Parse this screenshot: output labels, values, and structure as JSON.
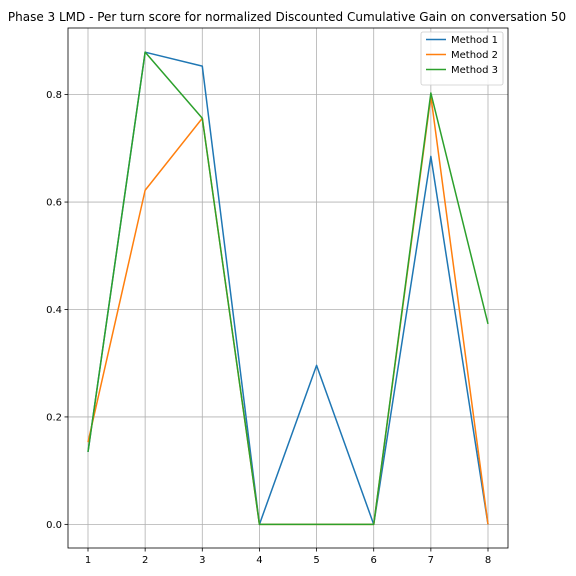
{
  "chart_data": {
    "type": "line",
    "title": "Phase 3 LMD - Per turn score for normalized Discounted Cumulative Gain on conversation 50",
    "xlabel": "",
    "ylabel": "",
    "x": [
      1,
      2,
      3,
      4,
      5,
      6,
      7,
      8
    ],
    "xticks": [
      "1",
      "2",
      "3",
      "4",
      "5",
      "6",
      "7",
      "8"
    ],
    "yticks": [
      "0.0",
      "0.2",
      "0.4",
      "0.6",
      "0.8"
    ],
    "xlim": [
      0.65,
      8.35
    ],
    "ylim": [
      -0.044,
      0.924
    ],
    "grid": true,
    "legend": "top-right",
    "series": [
      {
        "name": "Method 1",
        "color": "#1f77b4",
        "values": [
          0.135,
          0.879,
          0.853,
          0.0,
          0.296,
          0.0,
          0.685,
          0.0
        ]
      },
      {
        "name": "Method 2",
        "color": "#ff7f0e",
        "values": [
          0.153,
          0.622,
          0.756,
          0.0,
          0.0,
          0.0,
          0.797,
          0.0
        ]
      },
      {
        "name": "Method 3",
        "color": "#2ca02c",
        "values": [
          0.135,
          0.879,
          0.756,
          0.0,
          0.0,
          0.0,
          0.803,
          0.373
        ]
      }
    ]
  }
}
